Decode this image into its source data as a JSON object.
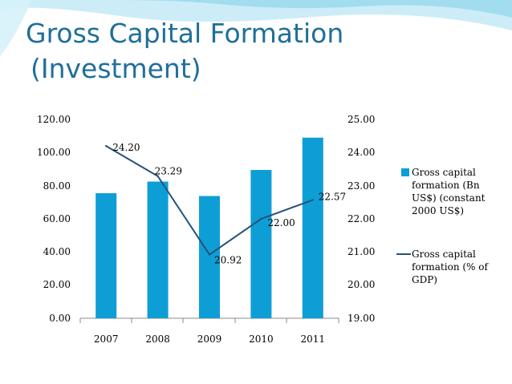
{
  "slide": {
    "title_line1": "Gross Capital Formation",
    "title_line2": "(Investment)",
    "title_color": "#1f6f9a",
    "accent_color": "#7fd0ea"
  },
  "chart_data": {
    "type": "bar",
    "categories": [
      "2007",
      "2008",
      "2009",
      "2010",
      "2011"
    ],
    "series": [
      {
        "name": "Gross capital formation (Bn US$) (constant 2000 US$)",
        "legend_lines": [
          "Gross capital",
          "formation (Bn",
          "US$) (constant",
          "2000 US$)"
        ],
        "type": "bar",
        "axis": "left",
        "color": "#0e9ed6",
        "values": [
          75.5,
          82.5,
          73.8,
          89.5,
          109.0
        ]
      },
      {
        "name": "Gross capital formation (% of GDP)",
        "legend_lines": [
          "Gross capital",
          "formation (% of",
          "GDP)"
        ],
        "type": "line",
        "axis": "right",
        "color": "#24527a",
        "values": [
          24.2,
          23.29,
          20.92,
          22.0,
          22.57
        ],
        "labels": [
          "24.20",
          "23.29",
          "20.92",
          "22.00",
          "22.57"
        ]
      }
    ],
    "y_left": {
      "min": 0,
      "max": 120,
      "step": 20,
      "ticks": [
        "0.00",
        "20.00",
        "40.00",
        "60.00",
        "80.00",
        "100.00",
        "120.00"
      ]
    },
    "y_right": {
      "min": 19,
      "max": 25,
      "step": 1,
      "ticks": [
        "19.00",
        "20.00",
        "21.00",
        "22.00",
        "23.00",
        "24.00",
        "25.00"
      ]
    },
    "grid": false,
    "legend_position": "right"
  }
}
